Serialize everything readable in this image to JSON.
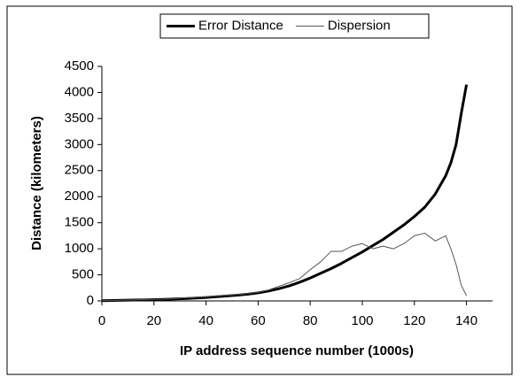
{
  "chart_data": {
    "type": "line",
    "xlabel": "IP address sequence number (1000s)",
    "ylabel": "Distance (kilometers)",
    "x": [
      0,
      4,
      8,
      12,
      16,
      20,
      24,
      28,
      32,
      36,
      40,
      44,
      48,
      52,
      56,
      60,
      64,
      68,
      72,
      76,
      80,
      84,
      88,
      92,
      96,
      100,
      104,
      108,
      112,
      116,
      120,
      124,
      128,
      132,
      134,
      136,
      138,
      140
    ],
    "series": [
      {
        "name": "Error Distance",
        "color": "#000000",
        "width": 3,
        "values": [
          5,
          8,
          12,
          16,
          20,
          25,
          30,
          38,
          45,
          55,
          65,
          80,
          95,
          110,
          130,
          155,
          190,
          235,
          290,
          360,
          440,
          530,
          620,
          720,
          830,
          940,
          1060,
          1180,
          1320,
          1460,
          1620,
          1800,
          2050,
          2400,
          2650,
          3000,
          3600,
          4150
        ]
      },
      {
        "name": "Dispersion",
        "color": "#555555",
        "width": 1,
        "values": [
          5,
          8,
          15,
          20,
          25,
          30,
          35,
          45,
          60,
          70,
          80,
          95,
          110,
          120,
          140,
          170,
          210,
          280,
          350,
          430,
          600,
          750,
          950,
          950,
          1050,
          1100,
          1000,
          1050,
          1000,
          1100,
          1250,
          1300,
          1150,
          1250,
          1000,
          700,
          300,
          100
        ]
      }
    ],
    "xlim": [
      0,
      150
    ],
    "xticks": [
      0,
      20,
      40,
      60,
      80,
      100,
      120,
      140
    ],
    "ylim": [
      0,
      4500
    ],
    "yticks": [
      0,
      500,
      1000,
      1500,
      2000,
      2500,
      3000,
      3500,
      4000,
      4500
    ],
    "legend": "top"
  }
}
